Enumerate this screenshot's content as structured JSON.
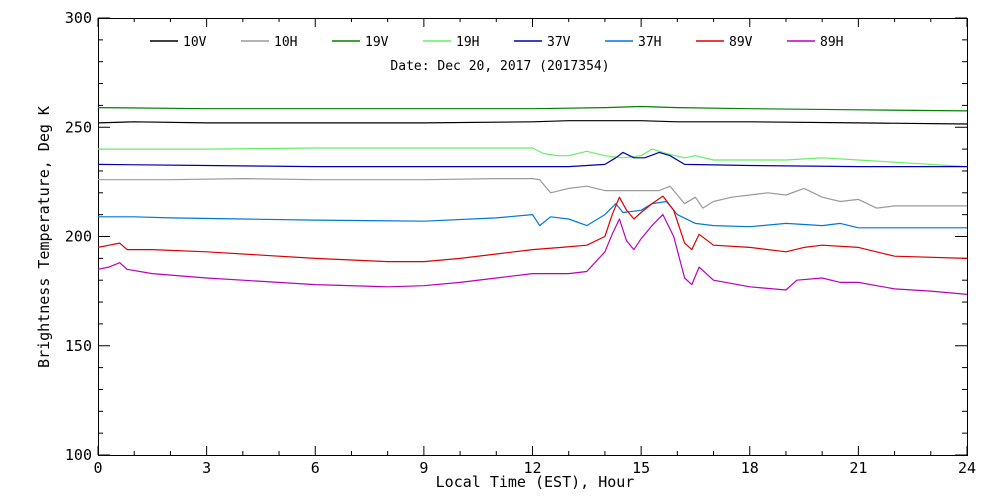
{
  "chart_data": {
    "type": "line",
    "title": "",
    "annotation": "Date: Dec 20, 2017 (2017354)",
    "xlabel": "Local Time (EST), Hour",
    "ylabel": "Brightness Temperature, Deg K",
    "xlim": [
      0,
      24
    ],
    "ylim": [
      100,
      300
    ],
    "xticks": [
      0,
      3,
      6,
      9,
      12,
      15,
      18,
      21,
      24
    ],
    "yticks": [
      100,
      150,
      200,
      250,
      300
    ],
    "grid": false,
    "legend_position": "top",
    "series": [
      {
        "name": "10V",
        "color": "#000000",
        "points": [
          [
            0,
            252
          ],
          [
            1,
            252.5
          ],
          [
            3,
            252
          ],
          [
            6,
            252
          ],
          [
            9,
            252
          ],
          [
            12,
            252.5
          ],
          [
            13,
            253
          ],
          [
            14,
            253
          ],
          [
            15,
            253
          ],
          [
            16,
            252.5
          ],
          [
            18,
            252.5
          ],
          [
            21,
            252
          ],
          [
            24,
            251.5
          ]
        ]
      },
      {
        "name": "10H",
        "color": "#9a9a9a",
        "points": [
          [
            0,
            226
          ],
          [
            2,
            226
          ],
          [
            4,
            226.5
          ],
          [
            6,
            226
          ],
          [
            9,
            226
          ],
          [
            11,
            226.5
          ],
          [
            12,
            226.5
          ],
          [
            12.2,
            226
          ],
          [
            12.5,
            220
          ],
          [
            13,
            222
          ],
          [
            13.5,
            223
          ],
          [
            14,
            221
          ],
          [
            14.5,
            221
          ],
          [
            15,
            221
          ],
          [
            15.5,
            221
          ],
          [
            15.8,
            223
          ],
          [
            16.2,
            215
          ],
          [
            16.5,
            218
          ],
          [
            16.7,
            213
          ],
          [
            17,
            216
          ],
          [
            17.5,
            218
          ],
          [
            18,
            219
          ],
          [
            18.5,
            220
          ],
          [
            19,
            219
          ],
          [
            19.5,
            222
          ],
          [
            20,
            218
          ],
          [
            20.5,
            216
          ],
          [
            21,
            217
          ],
          [
            21.5,
            213
          ],
          [
            22,
            214
          ],
          [
            24,
            214
          ]
        ]
      },
      {
        "name": "19V",
        "color": "#008000",
        "points": [
          [
            0,
            259
          ],
          [
            3,
            258.5
          ],
          [
            6,
            258.5
          ],
          [
            9,
            258.5
          ],
          [
            12,
            258.5
          ],
          [
            14,
            259
          ],
          [
            15,
            259.5
          ],
          [
            16,
            259
          ],
          [
            18,
            258.5
          ],
          [
            21,
            258
          ],
          [
            24,
            257.5
          ]
        ]
      },
      {
        "name": "19H",
        "color": "#66ee66",
        "points": [
          [
            0,
            240
          ],
          [
            3,
            240
          ],
          [
            6,
            240.5
          ],
          [
            9,
            240.5
          ],
          [
            12,
            240.5
          ],
          [
            12.3,
            238
          ],
          [
            12.7,
            237
          ],
          [
            13,
            237
          ],
          [
            13.5,
            239
          ],
          [
            14,
            237
          ],
          [
            14.5,
            236
          ],
          [
            15,
            237
          ],
          [
            15.3,
            240
          ],
          [
            15.7,
            238
          ],
          [
            16.2,
            236
          ],
          [
            16.5,
            237
          ],
          [
            17,
            235
          ],
          [
            18,
            235
          ],
          [
            19,
            235
          ],
          [
            20,
            236
          ],
          [
            21,
            235
          ],
          [
            22,
            234
          ],
          [
            24,
            232
          ]
        ]
      },
      {
        "name": "37V",
        "color": "#0000aa",
        "points": [
          [
            0,
            233
          ],
          [
            3,
            232.5
          ],
          [
            6,
            232
          ],
          [
            9,
            232
          ],
          [
            12,
            232
          ],
          [
            13,
            232
          ],
          [
            14,
            233
          ],
          [
            14.3,
            236
          ],
          [
            14.5,
            238.5
          ],
          [
            14.8,
            236
          ],
          [
            15.1,
            236
          ],
          [
            15.5,
            238.5
          ],
          [
            15.8,
            237
          ],
          [
            16.2,
            233
          ],
          [
            18,
            232.5
          ],
          [
            21,
            232
          ],
          [
            24,
            232
          ]
        ]
      },
      {
        "name": "37H",
        "color": "#0077dd",
        "points": [
          [
            0,
            209
          ],
          [
            1,
            209
          ],
          [
            2,
            208.5
          ],
          [
            4,
            208
          ],
          [
            6,
            207.5
          ],
          [
            9,
            207
          ],
          [
            11,
            208.5
          ],
          [
            12,
            210
          ],
          [
            12.2,
            205
          ],
          [
            12.5,
            209
          ],
          [
            13,
            208
          ],
          [
            13.5,
            205
          ],
          [
            14,
            210
          ],
          [
            14.3,
            215
          ],
          [
            14.5,
            211
          ],
          [
            15,
            212
          ],
          [
            15.3,
            215
          ],
          [
            15.7,
            216
          ],
          [
            16,
            210
          ],
          [
            16.5,
            206
          ],
          [
            17,
            205
          ],
          [
            18,
            204.5
          ],
          [
            19,
            206
          ],
          [
            20,
            205
          ],
          [
            20.5,
            206
          ],
          [
            21,
            204
          ],
          [
            24,
            204
          ]
        ]
      },
      {
        "name": "89V",
        "color": "#dd0000",
        "points": [
          [
            0,
            195
          ],
          [
            0.3,
            196
          ],
          [
            0.6,
            197
          ],
          [
            0.8,
            194
          ],
          [
            1.5,
            194
          ],
          [
            3,
            193
          ],
          [
            6,
            190
          ],
          [
            8,
            188.5
          ],
          [
            9,
            188.5
          ],
          [
            10,
            190
          ],
          [
            11,
            192
          ],
          [
            12,
            194
          ],
          [
            12.8,
            195
          ],
          [
            13.5,
            196
          ],
          [
            14,
            200
          ],
          [
            14.2,
            210
          ],
          [
            14.4,
            218
          ],
          [
            14.6,
            212
          ],
          [
            14.8,
            208
          ],
          [
            15,
            211
          ],
          [
            15.3,
            215
          ],
          [
            15.6,
            218.5
          ],
          [
            15.9,
            212
          ],
          [
            16.2,
            197
          ],
          [
            16.4,
            194
          ],
          [
            16.6,
            201
          ],
          [
            17,
            196
          ],
          [
            18,
            195
          ],
          [
            19,
            193
          ],
          [
            19.5,
            195
          ],
          [
            20,
            196
          ],
          [
            21,
            195
          ],
          [
            22,
            191
          ],
          [
            24,
            190
          ]
        ]
      },
      {
        "name": "89H",
        "color": "#bb00bb",
        "points": [
          [
            0,
            185
          ],
          [
            0.3,
            186
          ],
          [
            0.6,
            188
          ],
          [
            0.8,
            185
          ],
          [
            1.5,
            183
          ],
          [
            3,
            181
          ],
          [
            6,
            178
          ],
          [
            8,
            177
          ],
          [
            9,
            177.5
          ],
          [
            10,
            179
          ],
          [
            11,
            181
          ],
          [
            12,
            183
          ],
          [
            13,
            183
          ],
          [
            13.5,
            184
          ],
          [
            14,
            193
          ],
          [
            14.2,
            201
          ],
          [
            14.4,
            208
          ],
          [
            14.6,
            198
          ],
          [
            14.8,
            194
          ],
          [
            15,
            199
          ],
          [
            15.3,
            205
          ],
          [
            15.6,
            210
          ],
          [
            15.9,
            200
          ],
          [
            16.2,
            181
          ],
          [
            16.4,
            178
          ],
          [
            16.6,
            186
          ],
          [
            17,
            180
          ],
          [
            18,
            177
          ],
          [
            19,
            175.5
          ],
          [
            19.3,
            180
          ],
          [
            20,
            181
          ],
          [
            20.5,
            179
          ],
          [
            21,
            179
          ],
          [
            22,
            176
          ],
          [
            23,
            175
          ],
          [
            24,
            173.5
          ]
        ]
      }
    ]
  }
}
